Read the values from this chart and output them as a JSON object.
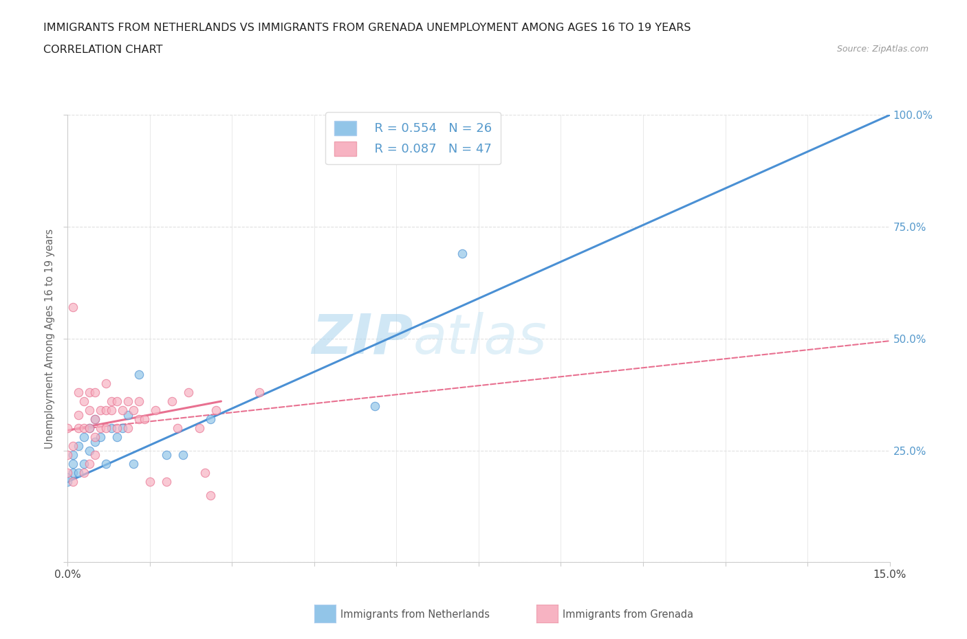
{
  "title_line1": "IMMIGRANTS FROM NETHERLANDS VS IMMIGRANTS FROM GRENADA UNEMPLOYMENT AMONG AGES 16 TO 19 YEARS",
  "title_line2": "CORRELATION CHART",
  "source_text": "Source: ZipAtlas.com",
  "ylabel": "Unemployment Among Ages 16 to 19 years",
  "xlim": [
    0.0,
    0.15
  ],
  "ylim": [
    0.0,
    1.0
  ],
  "xtick_positions": [
    0.0,
    0.015,
    0.03,
    0.045,
    0.06,
    0.075,
    0.09,
    0.105,
    0.12,
    0.135,
    0.15
  ],
  "xticklabel_left": "0.0%",
  "xticklabel_right": "15.0%",
  "yticks": [
    0.0,
    0.25,
    0.5,
    0.75,
    1.0
  ],
  "right_yticklabels": [
    "",
    "25.0%",
    "50.0%",
    "75.0%",
    "100.0%"
  ],
  "legend_r1": "R = 0.554",
  "legend_n1": "N = 26",
  "legend_r2": "R = 0.087",
  "legend_n2": "N = 47",
  "color_netherlands": "#92c5e8",
  "color_grenada": "#f7b3c2",
  "color_trendline_netherlands": "#4a90d4",
  "color_trendline_grenada": "#e87090",
  "color_grid": "#e0e0e0",
  "color_axis": "#cccccc",
  "watermark_color": "#cde8f5",
  "color_right_axis": "#5599cc",
  "netherlands_x": [
    0.0,
    0.0,
    0.001,
    0.001,
    0.001,
    0.002,
    0.002,
    0.003,
    0.003,
    0.004,
    0.004,
    0.005,
    0.005,
    0.006,
    0.007,
    0.008,
    0.009,
    0.01,
    0.011,
    0.012,
    0.013,
    0.018,
    0.021,
    0.026,
    0.056,
    0.072
  ],
  "netherlands_y": [
    0.18,
    0.19,
    0.2,
    0.22,
    0.24,
    0.2,
    0.26,
    0.22,
    0.28,
    0.25,
    0.3,
    0.27,
    0.32,
    0.28,
    0.22,
    0.3,
    0.28,
    0.3,
    0.33,
    0.22,
    0.42,
    0.24,
    0.24,
    0.32,
    0.35,
    0.69
  ],
  "grenada_x": [
    0.0,
    0.0,
    0.0,
    0.001,
    0.001,
    0.001,
    0.002,
    0.002,
    0.002,
    0.003,
    0.003,
    0.003,
    0.004,
    0.004,
    0.004,
    0.004,
    0.005,
    0.005,
    0.005,
    0.005,
    0.006,
    0.006,
    0.007,
    0.007,
    0.007,
    0.008,
    0.008,
    0.009,
    0.009,
    0.01,
    0.011,
    0.011,
    0.012,
    0.013,
    0.013,
    0.014,
    0.015,
    0.016,
    0.018,
    0.019,
    0.02,
    0.022,
    0.024,
    0.025,
    0.026,
    0.027,
    0.035
  ],
  "grenada_y": [
    0.2,
    0.24,
    0.3,
    0.18,
    0.26,
    0.57,
    0.3,
    0.33,
    0.38,
    0.2,
    0.3,
    0.36,
    0.22,
    0.3,
    0.34,
    0.38,
    0.24,
    0.28,
    0.32,
    0.38,
    0.3,
    0.34,
    0.3,
    0.34,
    0.4,
    0.34,
    0.36,
    0.3,
    0.36,
    0.34,
    0.3,
    0.36,
    0.34,
    0.32,
    0.36,
    0.32,
    0.18,
    0.34,
    0.18,
    0.36,
    0.3,
    0.38,
    0.3,
    0.2,
    0.15,
    0.34,
    0.38
  ],
  "nl_trend_x0": 0.0,
  "nl_trend_y0": 0.18,
  "nl_trend_x1": 0.15,
  "nl_trend_y1": 1.0,
  "gr_trend_solid_x0": 0.0,
  "gr_trend_solid_y0": 0.295,
  "gr_trend_solid_x1": 0.028,
  "gr_trend_solid_y1": 0.36,
  "gr_trend_dash_x0": 0.0,
  "gr_trend_dash_y0": 0.295,
  "gr_trend_dash_x1": 0.15,
  "gr_trend_dash_y1": 0.495,
  "background_color": "#ffffff",
  "fig_width": 14.06,
  "fig_height": 9.3,
  "dpi": 100
}
